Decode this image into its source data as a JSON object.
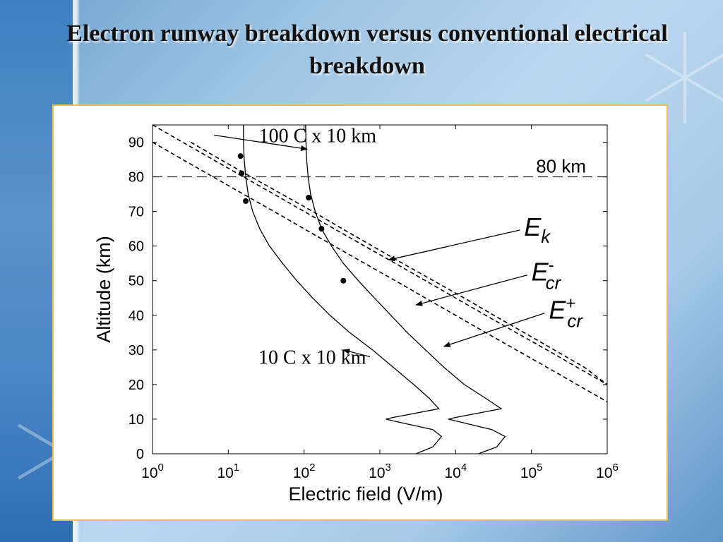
{
  "slide": {
    "title": "Electron runway breakdown versus conventional electrical breakdown"
  },
  "chart_data": {
    "type": "line",
    "x_scale": "log",
    "y_scale": "linear",
    "xlim": [
      1,
      1000000
    ],
    "ylim": [
      0,
      95
    ],
    "xlabel": "Electric field (V/m)",
    "ylabel": "Altitude (km)",
    "x_ticks": [
      {
        "value": 1,
        "base": "10",
        "exp": "0"
      },
      {
        "value": 10,
        "base": "10",
        "exp": "1"
      },
      {
        "value": 100,
        "base": "10",
        "exp": "2"
      },
      {
        "value": 1000,
        "base": "10",
        "exp": "3"
      },
      {
        "value": 10000,
        "base": "10",
        "exp": "4"
      },
      {
        "value": 100000,
        "base": "10",
        "exp": "5"
      },
      {
        "value": 1000000,
        "base": "10",
        "exp": "6"
      }
    ],
    "y_ticks": [
      "0",
      "10",
      "20",
      "30",
      "40",
      "50",
      "60",
      "70",
      "80",
      "90"
    ],
    "reference_line": {
      "y": 80,
      "label": "80 km"
    },
    "series": [
      {
        "name": "10 C x 10 km",
        "style": "solid",
        "points": [
          [
            15.8,
            95
          ],
          [
            15.9,
            90
          ],
          [
            16.2,
            85
          ],
          [
            17,
            80
          ],
          [
            18.3,
            75
          ],
          [
            21,
            70
          ],
          [
            26,
            65
          ],
          [
            35,
            60
          ],
          [
            52,
            55
          ],
          [
            80,
            50
          ],
          [
            130,
            45
          ],
          [
            220,
            40
          ],
          [
            400,
            35
          ],
          [
            800,
            30
          ],
          [
            1500,
            25
          ],
          [
            2800,
            20
          ],
          [
            4500,
            16
          ],
          [
            6000,
            13
          ],
          [
            1500,
            10.5
          ],
          [
            1200,
            10
          ],
          [
            1500,
            9.5
          ],
          [
            5000,
            7
          ],
          [
            6500,
            5
          ],
          [
            5000,
            2
          ],
          [
            3000,
            0
          ]
        ]
      },
      {
        "name": "100 C x 10 km",
        "style": "solid",
        "points": [
          [
            105,
            95
          ],
          [
            106,
            90
          ],
          [
            108,
            85
          ],
          [
            113,
            80
          ],
          [
            122,
            75
          ],
          [
            140,
            70
          ],
          [
            170,
            65
          ],
          [
            230,
            60
          ],
          [
            330,
            55
          ],
          [
            520,
            50
          ],
          [
            850,
            45
          ],
          [
            1400,
            40
          ],
          [
            2300,
            35
          ],
          [
            4000,
            30
          ],
          [
            7000,
            25
          ],
          [
            13000,
            20
          ],
          [
            25000,
            16
          ],
          [
            40000,
            13
          ],
          [
            10000,
            10.5
          ],
          [
            8000,
            10
          ],
          [
            10000,
            9.5
          ],
          [
            30000,
            7
          ],
          [
            45000,
            5
          ],
          [
            35000,
            2
          ],
          [
            20000,
            0
          ]
        ]
      },
      {
        "name": "E_k",
        "style": "dashed",
        "points": [
          [
            3.2,
            90
          ],
          [
            7.9,
            85
          ],
          [
            20,
            80
          ],
          [
            51,
            75
          ],
          [
            130,
            70
          ],
          [
            320,
            65
          ],
          [
            800,
            60
          ],
          [
            2000,
            55
          ],
          [
            5100,
            50
          ],
          [
            13000,
            45
          ],
          [
            32000,
            40
          ],
          [
            80000,
            35
          ],
          [
            200000,
            30
          ],
          [
            500000,
            25
          ],
          [
            1000000,
            20
          ]
        ]
      },
      {
        "name": "E_cr-",
        "style": "dashed",
        "points": [
          [
            1,
            95
          ],
          [
            2.5,
            90
          ],
          [
            6.3,
            85
          ],
          [
            15.8,
            80
          ],
          [
            40,
            75
          ],
          [
            100,
            70
          ],
          [
            250,
            65
          ],
          [
            630,
            60
          ],
          [
            1600,
            55
          ],
          [
            4000,
            50
          ],
          [
            10000,
            45
          ],
          [
            25000,
            40
          ],
          [
            63000,
            35
          ],
          [
            160000,
            30
          ],
          [
            400000,
            25
          ],
          [
            1000000,
            20
          ]
        ]
      },
      {
        "name": "E_cr+",
        "style": "dashed",
        "points": [
          [
            1,
            90
          ],
          [
            2.5,
            85
          ],
          [
            6.3,
            80
          ],
          [
            15.8,
            75
          ],
          [
            40,
            70
          ],
          [
            100,
            65
          ],
          [
            250,
            60
          ],
          [
            630,
            55
          ],
          [
            1600,
            50
          ],
          [
            4000,
            45
          ],
          [
            10000,
            40
          ],
          [
            25000,
            35
          ],
          [
            63000,
            30
          ],
          [
            160000,
            25
          ],
          [
            400000,
            20
          ],
          [
            1000000,
            15
          ]
        ]
      }
    ],
    "markers": [
      {
        "series": "10 C x 10 km",
        "x": 14.5,
        "y": 86
      },
      {
        "series": "10 C x 10 km",
        "x": 15,
        "y": 81
      },
      {
        "series": "10 C x 10 km",
        "x": 17,
        "y": 73
      },
      {
        "series": "100 C x 10 km",
        "x": 115,
        "y": 74
      },
      {
        "series": "100 C x 10 km",
        "x": 170,
        "y": 65
      },
      {
        "series": "100 C x 10 km",
        "x": 330,
        "y": 50
      }
    ],
    "annotations": [
      {
        "id": "ann-100c",
        "text": "100 C x 10 km",
        "x": 900,
        "y": 90,
        "arrow_to": [
          110,
          88
        ]
      },
      {
        "id": "ann-10c",
        "text": "10 C x 10 km",
        "x": 25,
        "y": 26,
        "arrow_to": [
          330,
          30
        ]
      },
      {
        "id": "ann-ek",
        "base": "E",
        "sub": "k",
        "sup": "",
        "x": 80000,
        "y": 63,
        "arrow_to": [
          1300,
          56
        ]
      },
      {
        "id": "ann-ecr-minus",
        "base": "E",
        "sub": "cr",
        "sup": "-",
        "x": 100000,
        "y": 50,
        "arrow_to": [
          3000,
          43
        ]
      },
      {
        "id": "ann-ecr-plus",
        "base": "E",
        "sub": "cr",
        "sup": "+",
        "x": 170000,
        "y": 39,
        "arrow_to": [
          7000,
          31
        ]
      }
    ]
  }
}
